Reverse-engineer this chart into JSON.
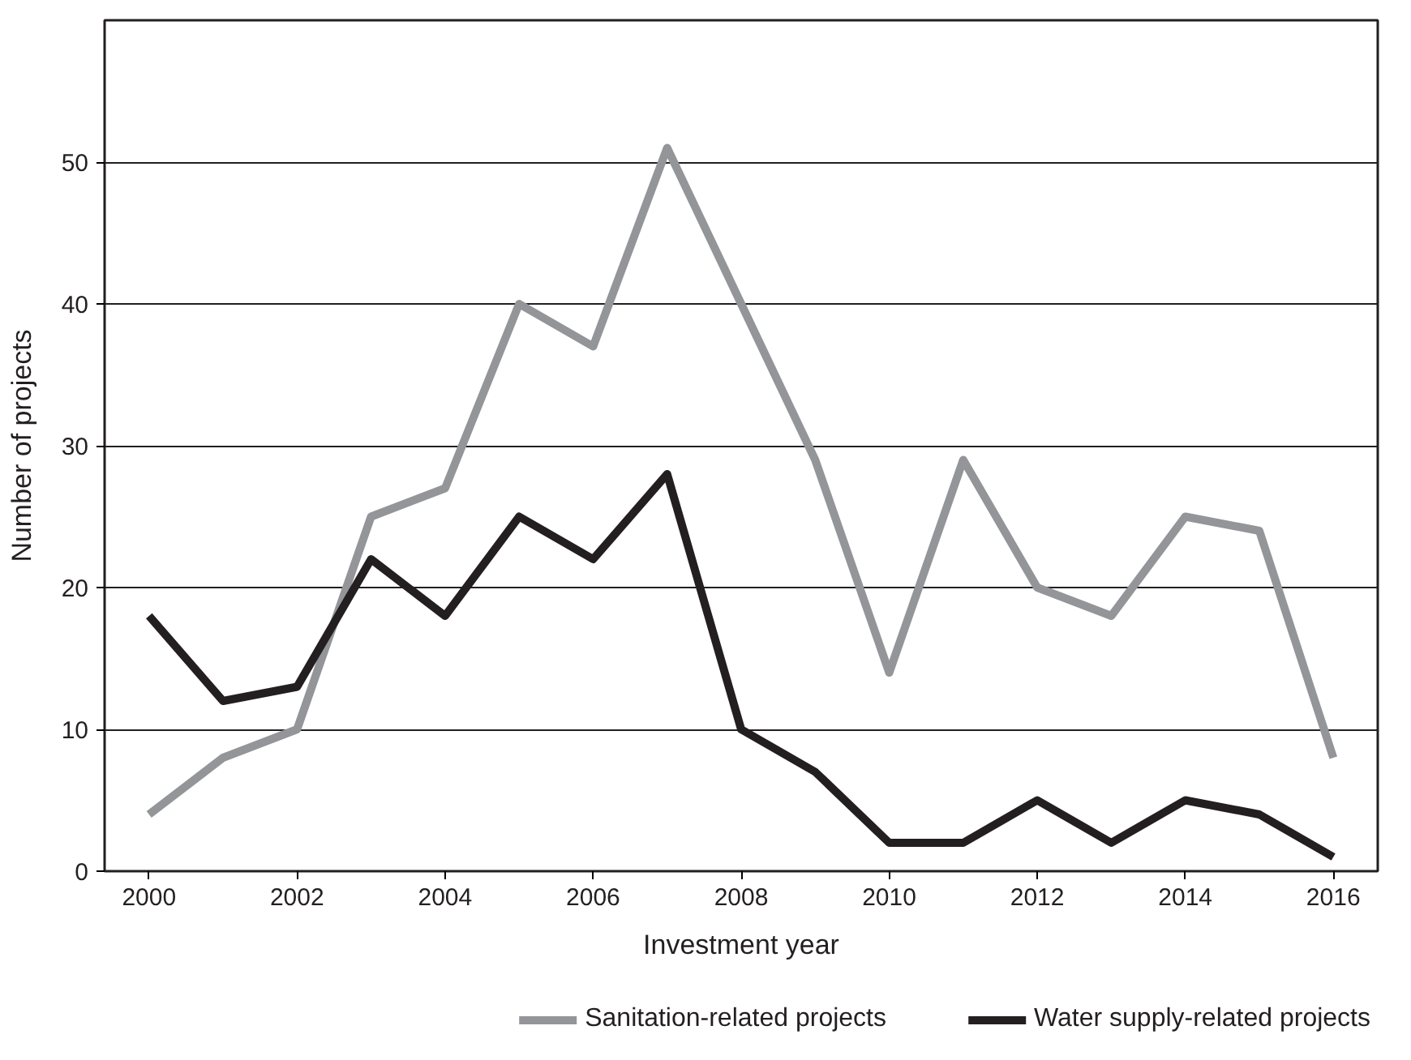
{
  "chart_data": {
    "type": "line",
    "xlabel": "Investment year",
    "ylabel": "Number of projects",
    "x": [
      2000,
      2001,
      2002,
      2003,
      2004,
      2005,
      2006,
      2007,
      2008,
      2009,
      2010,
      2011,
      2012,
      2013,
      2014,
      2015,
      2016
    ],
    "series": [
      {
        "name": "Sanitation-related projects",
        "color": "#939598",
        "values": [
          4,
          8,
          10,
          25,
          27,
          40,
          37,
          51,
          40,
          29,
          14,
          29,
          20,
          18,
          25,
          24,
          8
        ]
      },
      {
        "name": "Water supply-related projects",
        "color": "#231f20",
        "values": [
          18,
          12,
          13,
          22,
          18,
          25,
          22,
          28,
          10,
          7,
          2,
          2,
          5,
          2,
          5,
          4,
          1
        ]
      }
    ],
    "xlim": [
      1999.4,
      2016.6
    ],
    "ylim": [
      0,
      60
    ],
    "xticks": [
      2000,
      2002,
      2004,
      2006,
      2008,
      2010,
      2012,
      2014,
      2016
    ],
    "yticks": [
      0,
      10,
      20,
      30,
      40,
      50
    ],
    "grid": "y",
    "legend": "bottom",
    "marker": "none",
    "line_style": "solid"
  }
}
